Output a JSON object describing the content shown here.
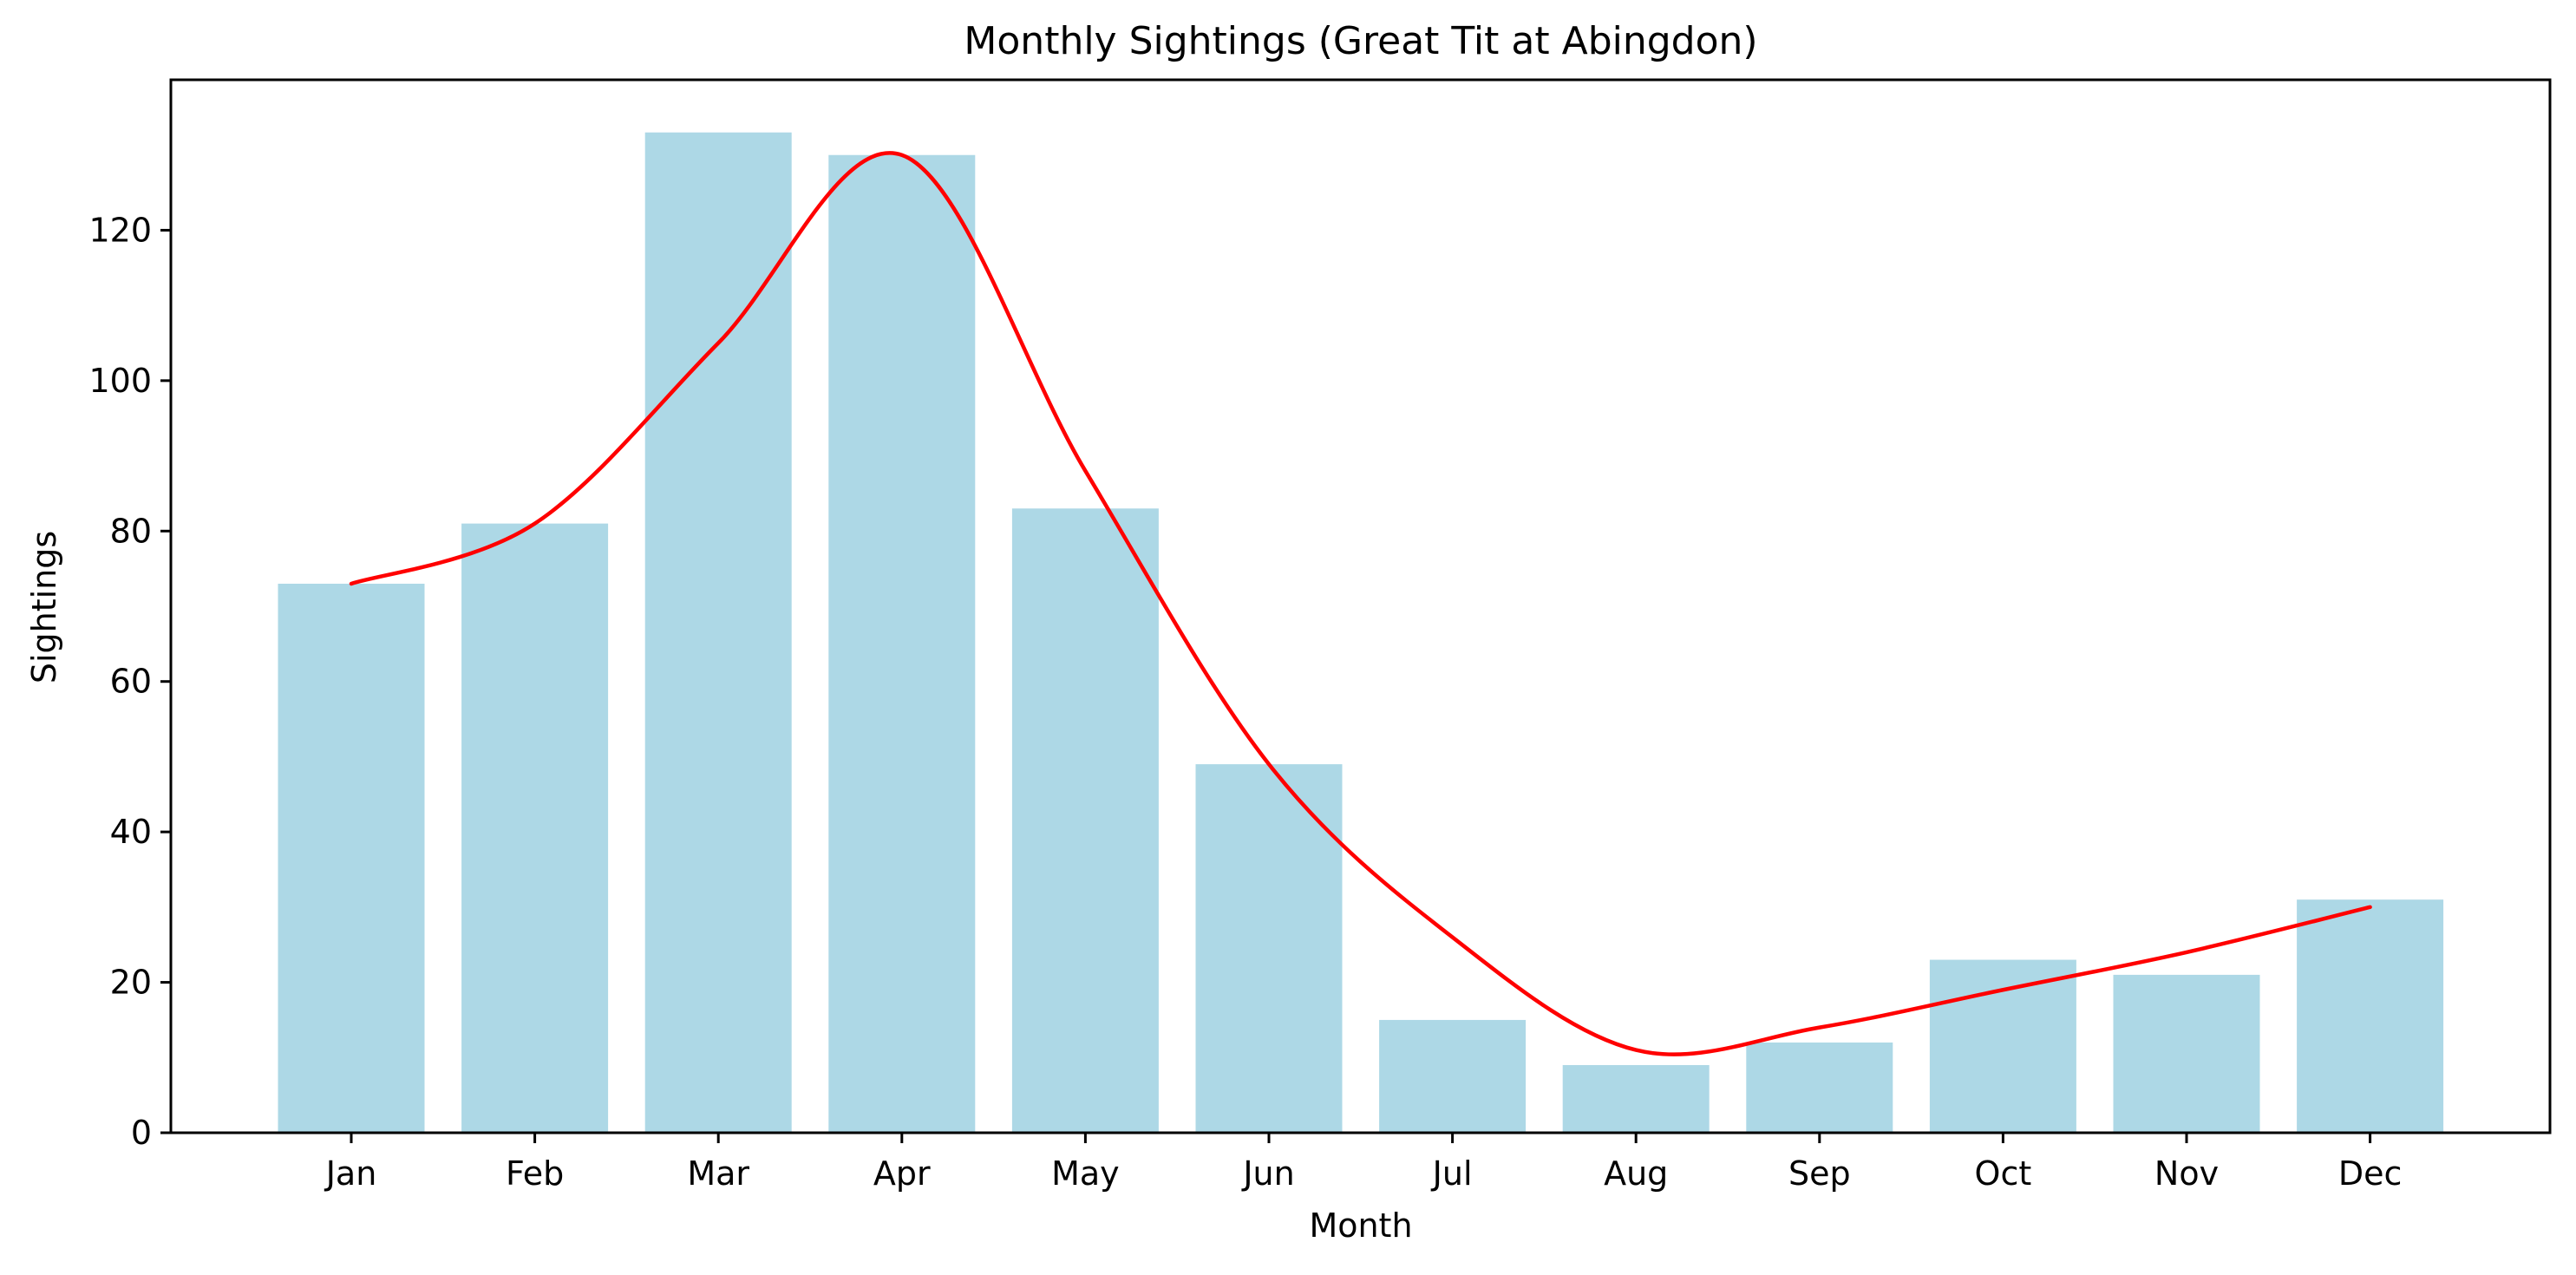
{
  "chart_data": {
    "type": "bar",
    "title": "Monthly Sightings (Great Tit at Abingdon)",
    "xlabel": "Month",
    "ylabel": "Sightings",
    "categories": [
      "Jan",
      "Feb",
      "Mar",
      "Apr",
      "May",
      "Jun",
      "Jul",
      "Aug",
      "Sep",
      "Oct",
      "Nov",
      "Dec"
    ],
    "values": [
      73,
      81,
      133,
      130,
      83,
      49,
      15,
      9,
      12,
      23,
      21,
      31
    ],
    "ylim": [
      0,
      140
    ],
    "yticks": [
      0,
      20,
      40,
      60,
      80,
      100,
      120
    ],
    "grid": false,
    "legend": "none",
    "bar_color": "#add8e6",
    "trend_line": {
      "type": "line",
      "smoothed": true,
      "color": "#ff0000",
      "x": [
        "Jan",
        "Feb",
        "Mar",
        "Apr",
        "May",
        "Jun",
        "Jul",
        "Aug",
        "Sep",
        "Oct",
        "Nov",
        "Dec"
      ],
      "values": [
        73,
        81,
        105,
        130,
        88,
        49,
        26,
        11,
        14,
        19,
        24,
        30
      ]
    }
  }
}
